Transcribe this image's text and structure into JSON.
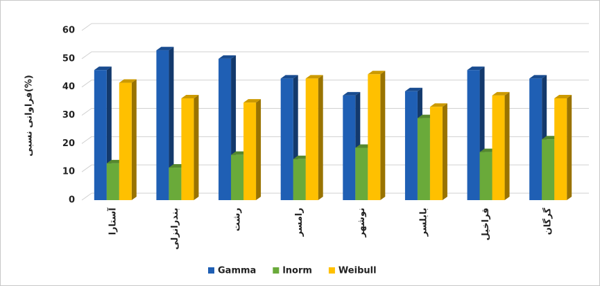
{
  "chart_data": {
    "type": "bar3d",
    "y_label": "فراوانی نسبی(%)",
    "categories": [
      "آستارا",
      "بندرانزلی",
      "رشت",
      "رامسر",
      "نوشهر",
      "بابلسر",
      "قراخیل",
      "گرگان"
    ],
    "series": [
      {
        "name": "Gamma",
        "color": "#1f5fb4",
        "values": [
          46,
          53,
          50,
          43,
          37,
          38.5,
          46,
          43
        ]
      },
      {
        "name": "lnorm",
        "color": "#6aaa3a",
        "values": [
          13,
          11.5,
          16,
          14.5,
          18.5,
          29,
          17,
          21.5
        ]
      },
      {
        "name": "Weibull",
        "color": "#ffc000",
        "values": [
          41.5,
          36,
          34.5,
          43,
          44.5,
          33,
          37,
          36
        ]
      }
    ],
    "ylim": [
      0,
      60
    ],
    "yticks": [
      0,
      10,
      20,
      30,
      40,
      50,
      60
    ],
    "grid": true,
    "legend": "bottom"
  }
}
